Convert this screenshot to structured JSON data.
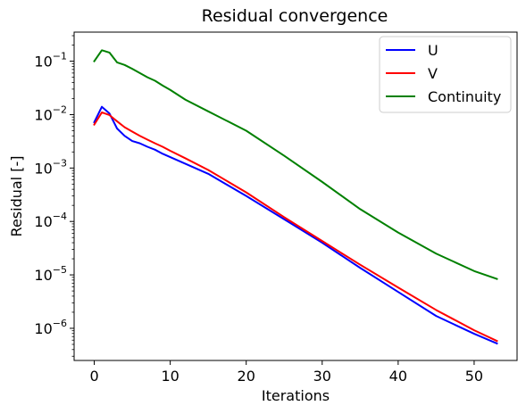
{
  "chart_data": {
    "type": "line",
    "title": "Residual convergence",
    "xlabel": "Iterations",
    "ylabel": "Residual [-]",
    "yscale": "log",
    "xlim": [
      -2.65,
      55.65
    ],
    "ylim": [
      2.5e-07,
      0.35
    ],
    "x_ticks": [
      0,
      10,
      20,
      30,
      40,
      50
    ],
    "y_ticks": [
      {
        "value": 1e-06,
        "mantissa": "10",
        "exponent": "−6"
      },
      {
        "value": 1e-05,
        "mantissa": "10",
        "exponent": "−5"
      },
      {
        "value": 0.0001,
        "mantissa": "10",
        "exponent": "−4"
      },
      {
        "value": 0.001,
        "mantissa": "10",
        "exponent": "−3"
      },
      {
        "value": 0.01,
        "mantissa": "10",
        "exponent": "−2"
      },
      {
        "value": 0.1,
        "mantissa": "10",
        "exponent": "−1"
      }
    ],
    "grid": false,
    "legend_position": "top-right",
    "series": [
      {
        "name": "U",
        "color": "#0000ff",
        "points": [
          [
            0,
            0.0072
          ],
          [
            1,
            0.014
          ],
          [
            2,
            0.0105
          ],
          [
            3,
            0.0055
          ],
          [
            4,
            0.004
          ],
          [
            5,
            0.0032
          ],
          [
            6,
            0.0029
          ],
          [
            7,
            0.0025
          ],
          [
            8,
            0.0022
          ],
          [
            9,
            0.00185
          ],
          [
            10,
            0.0016
          ],
          [
            12,
            0.0012
          ],
          [
            15,
            0.00078
          ],
          [
            20,
            0.0003
          ],
          [
            25,
            0.00011
          ],
          [
            30,
            4e-05
          ],
          [
            35,
            1.35e-05
          ],
          [
            40,
            4.8e-06
          ],
          [
            45,
            1.7e-06
          ],
          [
            50,
            7.9e-07
          ],
          [
            53,
            5.2e-07
          ]
        ]
      },
      {
        "name": "V",
        "color": "#ff0000",
        "points": [
          [
            0,
            0.0065
          ],
          [
            1,
            0.011
          ],
          [
            2,
            0.0098
          ],
          [
            3,
            0.0075
          ],
          [
            4,
            0.0058
          ],
          [
            5,
            0.0048
          ],
          [
            6,
            0.004
          ],
          [
            7,
            0.0034
          ],
          [
            8,
            0.0029
          ],
          [
            9,
            0.0025
          ],
          [
            10,
            0.0021
          ],
          [
            12,
            0.00152
          ],
          [
            15,
            0.00092
          ],
          [
            20,
            0.00035
          ],
          [
            25,
            0.00012
          ],
          [
            30,
            4.3e-05
          ],
          [
            35,
            1.55e-05
          ],
          [
            40,
            5.8e-06
          ],
          [
            45,
            2.2e-06
          ],
          [
            50,
            9.2e-07
          ],
          [
            53,
            5.8e-07
          ]
        ]
      },
      {
        "name": "Continuity",
        "color": "#008000",
        "points": [
          [
            0,
            0.1
          ],
          [
            1,
            0.16
          ],
          [
            2,
            0.145
          ],
          [
            3,
            0.095
          ],
          [
            4,
            0.085
          ],
          [
            5,
            0.072
          ],
          [
            6,
            0.06
          ],
          [
            7,
            0.05
          ],
          [
            8,
            0.043
          ],
          [
            9,
            0.035
          ],
          [
            10,
            0.029
          ],
          [
            12,
            0.019
          ],
          [
            15,
            0.0115
          ],
          [
            20,
            0.005
          ],
          [
            25,
            0.0017
          ],
          [
            30,
            0.00055
          ],
          [
            35,
            0.00017
          ],
          [
            40,
            6.2e-05
          ],
          [
            45,
            2.5e-05
          ],
          [
            50,
            1.18e-05
          ],
          [
            53,
            8.4e-06
          ]
        ]
      }
    ]
  }
}
